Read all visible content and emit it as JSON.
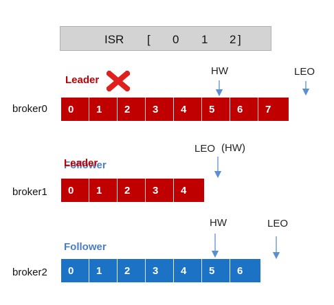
{
  "isr": {
    "label": "ISR",
    "open": "[",
    "members": [
      "0",
      "1",
      "2"
    ],
    "close": "]"
  },
  "brokers": [
    {
      "name": "broker0",
      "role": "Leader",
      "offsets": [
        "0",
        "1",
        "2",
        "3",
        "4",
        "5",
        "6",
        "7"
      ],
      "color": "#c00000",
      "status": "failed"
    },
    {
      "name": "broker1",
      "role": "Leader",
      "overprinted_role": "Follower",
      "offsets": [
        "0",
        "1",
        "2",
        "3",
        "4"
      ],
      "color": "#c00000"
    },
    {
      "name": "broker2",
      "role": "Follower",
      "offsets": [
        "0",
        "1",
        "2",
        "3",
        "4",
        "5",
        "6"
      ],
      "color": "#1c73c6"
    }
  ],
  "markers": {
    "broker0": {
      "hw": "HW",
      "leo": "LEO"
    },
    "broker1": {
      "leo": "LEO",
      "hw": "(HW)"
    },
    "broker2": {
      "hw": "HW",
      "leo": "LEO"
    }
  },
  "colors": {
    "leader": "#c00000",
    "follower": "#1c73c6",
    "follower_text": "#4a7dc2",
    "arrow": "#5b8fd0",
    "isr_bar": "#d3d3d3"
  },
  "icons": {
    "failure": "red-x-icon"
  }
}
